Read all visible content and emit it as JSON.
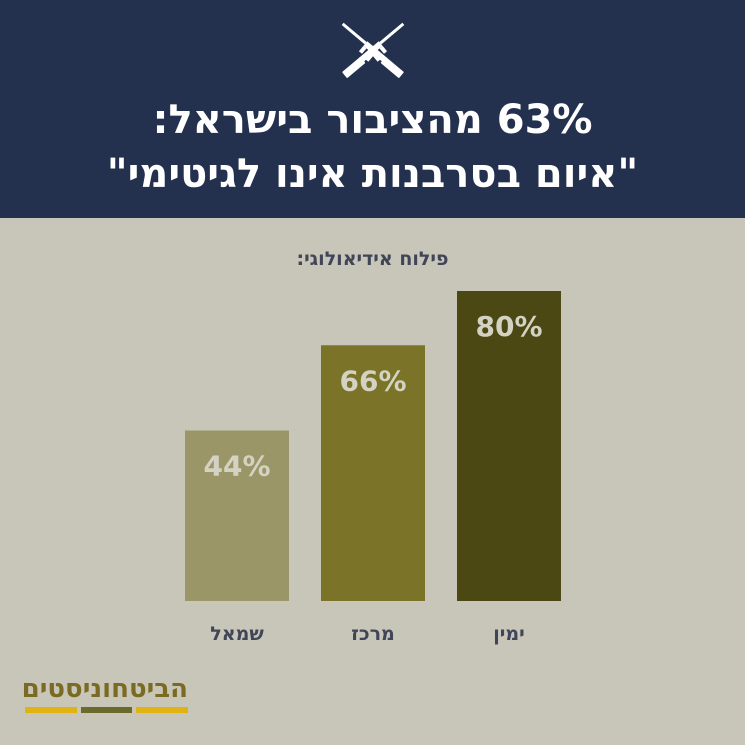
{
  "header": {
    "title_line1": "63% מהציבור בישראל:",
    "title_line2": "\"איום בסרבנות אינו לגיטימי\"",
    "icon": "crossed-rifles-icon"
  },
  "chart_data": {
    "type": "bar",
    "subtitle": "פילוח אידיאולוגי:",
    "categories": [
      "שמאל",
      "מרכז",
      "ימין"
    ],
    "values": [
      44,
      66,
      80
    ],
    "value_labels": [
      "44%",
      "66%",
      "80%"
    ],
    "colors": [
      "#9b9668",
      "#7b7428",
      "#4b4813"
    ],
    "ylim": [
      0,
      80
    ],
    "grid": false,
    "legend": "none"
  },
  "brand": {
    "name": "הביטחוניסטים",
    "bar_colors": [
      "#e0b313",
      "#6b6a2c",
      "#e0b313"
    ]
  },
  "colors": {
    "header_bg": "#23304e",
    "page_bg": "#c8c6b9",
    "value_label": "#d4d2c2"
  }
}
